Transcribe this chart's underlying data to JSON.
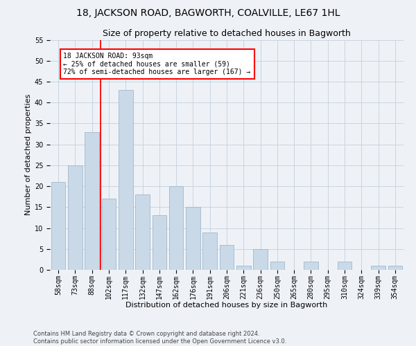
{
  "title": "18, JACKSON ROAD, BAGWORTH, COALVILLE, LE67 1HL",
  "subtitle": "Size of property relative to detached houses in Bagworth",
  "xlabel": "Distribution of detached houses by size in Bagworth",
  "ylabel": "Number of detached properties",
  "footer": "Contains HM Land Registry data © Crown copyright and database right 2024.\nContains public sector information licensed under the Open Government Licence v3.0.",
  "bar_labels": [
    "58sqm",
    "73sqm",
    "88sqm",
    "102sqm",
    "117sqm",
    "132sqm",
    "147sqm",
    "162sqm",
    "176sqm",
    "191sqm",
    "206sqm",
    "221sqm",
    "236sqm",
    "250sqm",
    "265sqm",
    "280sqm",
    "295sqm",
    "310sqm",
    "324sqm",
    "339sqm",
    "354sqm"
  ],
  "bar_values": [
    21,
    25,
    33,
    17,
    43,
    18,
    13,
    20,
    15,
    9,
    6,
    1,
    5,
    2,
    0,
    2,
    0,
    2,
    0,
    1,
    1
  ],
  "bar_color": "#c9d9e8",
  "bar_edge_color": "#a0b8cc",
  "vline_x_index": 2,
  "vline_color": "red",
  "annotation_text": "18 JACKSON ROAD: 93sqm\n← 25% of detached houses are smaller (59)\n72% of semi-detached houses are larger (167) →",
  "annotation_box_color": "white",
  "annotation_box_edge": "red",
  "ylim": [
    0,
    55
  ],
  "yticks": [
    0,
    5,
    10,
    15,
    20,
    25,
    30,
    35,
    40,
    45,
    50,
    55
  ],
  "background_color": "#eef2f7",
  "grid_color": "#c8d4e0",
  "title_fontsize": 10,
  "subtitle_fontsize": 9,
  "ylabel_fontsize": 8,
  "xlabel_fontsize": 8,
  "tick_fontsize": 7,
  "annotation_fontsize": 7,
  "footer_fontsize": 6
}
